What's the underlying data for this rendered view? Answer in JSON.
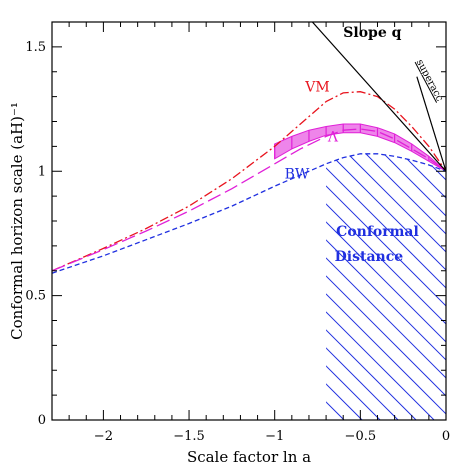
{
  "chart_data": {
    "type": "line",
    "xlabel": "Scale factor ln a",
    "ylabel": "Conformal horizon scale (aH)⁻¹",
    "xlim": [
      -2.3,
      0
    ],
    "ylim": [
      0,
      1.6
    ],
    "xticks": [
      {
        "value": -2,
        "label": "−2"
      },
      {
        "value": -1.5,
        "label": "−1.5"
      },
      {
        "value": -1,
        "label": "−1"
      },
      {
        "value": -0.5,
        "label": "−0.5"
      },
      {
        "value": 0,
        "label": "0"
      }
    ],
    "yticks": [
      {
        "value": 0,
        "label": "0"
      },
      {
        "value": 0.5,
        "label": "0.5"
      },
      {
        "value": 1,
        "label": "1"
      },
      {
        "value": 1.5,
        "label": "1.5"
      }
    ],
    "grid": false,
    "series": [
      {
        "name": "VM",
        "color": "#e8141e",
        "dash": "dash-dot",
        "x": [
          -2.3,
          -2.0,
          -1.75,
          -1.5,
          -1.25,
          -1.0,
          -0.85,
          -0.7,
          -0.6,
          -0.5,
          -0.4,
          -0.3,
          -0.2,
          -0.1,
          0.0
        ],
        "y": [
          0.6,
          0.69,
          0.77,
          0.86,
          0.97,
          1.1,
          1.19,
          1.28,
          1.315,
          1.32,
          1.3,
          1.25,
          1.18,
          1.1,
          1.0
        ]
      },
      {
        "name": "Λ",
        "color": "#e020d8",
        "dash": "long-dash",
        "x": [
          -2.3,
          -2.0,
          -1.75,
          -1.5,
          -1.25,
          -1.0,
          -0.85,
          -0.7,
          -0.6,
          -0.5,
          -0.4,
          -0.3,
          -0.2,
          -0.1,
          0.0
        ],
        "y": [
          0.6,
          0.685,
          0.76,
          0.84,
          0.93,
          1.03,
          1.09,
          1.14,
          1.165,
          1.17,
          1.16,
          1.13,
          1.09,
          1.05,
          1.0
        ]
      },
      {
        "name": "BW",
        "color": "#2030e0",
        "dash": "short-dash",
        "x": [
          -2.3,
          -2.0,
          -1.75,
          -1.5,
          -1.25,
          -1.0,
          -0.85,
          -0.7,
          -0.6,
          -0.5,
          -0.4,
          -0.3,
          -0.2,
          -0.1,
          0.0
        ],
        "y": [
          0.59,
          0.66,
          0.725,
          0.79,
          0.86,
          0.94,
          0.985,
          1.03,
          1.055,
          1.07,
          1.07,
          1.06,
          1.045,
          1.025,
          1.0
        ]
      }
    ],
    "lambda_band": {
      "color": "#e020d8",
      "x": [
        -1.0,
        -0.9,
        -0.8,
        -0.7,
        -0.6,
        -0.5,
        -0.4,
        -0.3,
        -0.2,
        -0.1,
        0.0
      ],
      "lower": [
        1.05,
        1.09,
        1.12,
        1.145,
        1.155,
        1.155,
        1.14,
        1.115,
        1.08,
        1.04,
        1.0
      ],
      "upper": [
        1.11,
        1.14,
        1.165,
        1.18,
        1.19,
        1.19,
        1.175,
        1.15,
        1.11,
        1.06,
        1.0
      ]
    },
    "slope_line": {
      "x": [
        -0.78,
        0.0
      ],
      "y": [
        1.6,
        1.0
      ],
      "color": "#000000"
    },
    "superacc_line": {
      "x": [
        -0.17,
        0.0
      ],
      "y": [
        1.38,
        1.0
      ],
      "color": "#000000"
    },
    "hatched_region": {
      "x_start": -0.7,
      "x_end": 0.0,
      "color": "#2030e0"
    },
    "annotations": [
      {
        "text": "Slope q",
        "x": -0.43,
        "y": 1.54,
        "color": "#000000"
      },
      {
        "text": "VM",
        "x": -0.75,
        "y": 1.32,
        "color": "#e8141e"
      },
      {
        "text": "Λ",
        "x": -0.66,
        "y": 1.12,
        "color": "#e020d8"
      },
      {
        "text": "BW",
        "x": -0.87,
        "y": 0.97,
        "color": "#2030e0"
      },
      {
        "text": "superacc",
        "x": -0.11,
        "y": 1.36,
        "color": "#000000"
      },
      {
        "text": "Conformal",
        "x": -0.4,
        "y": 0.74,
        "color": "#2030e0"
      },
      {
        "text": "Distance",
        "x": -0.45,
        "y": 0.64,
        "color": "#2030e0"
      }
    ]
  }
}
